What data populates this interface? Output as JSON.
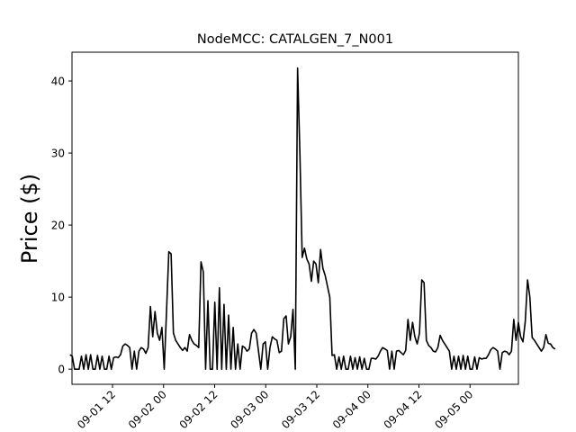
{
  "chart_data": {
    "type": "line",
    "title": "NodeMCC: CATALGEN_7_N001",
    "xlabel": "",
    "ylabel": "Price ($)",
    "x_range": [
      "2022-09-01 02:00",
      "2022-09-05 20:00"
    ],
    "x_tick_labels": [
      "09-01 12",
      "09-02 00",
      "09-02 12",
      "09-03 00",
      "09-03 12",
      "09-04 00",
      "09-04 12",
      "09-05 00"
    ],
    "y_tick_values": [
      0,
      10,
      20,
      30,
      40
    ],
    "ylim": [
      -2.1,
      44
    ],
    "grid": false,
    "legend": "none",
    "line_color": "#000000",
    "series": [
      {
        "values": [
          2.0,
          1.8,
          0.0,
          0.0,
          0.0,
          1.8,
          0.0,
          2.0,
          0.0,
          2.0,
          0.0,
          0.0,
          1.9,
          0.0,
          1.8,
          0.0,
          0.0,
          1.8,
          0.0,
          1.6,
          1.7,
          1.6,
          2.0,
          3.2,
          3.5,
          3.3,
          3.0,
          0.0,
          2.5,
          0.0,
          2.5,
          3.0,
          2.8,
          2.2,
          3.0,
          8.7,
          4.5,
          8.0,
          5.0,
          4.0,
          5.8,
          0.0,
          8.0,
          16.3,
          16.0,
          5.0,
          4.0,
          3.5,
          3.0,
          2.6,
          3.0,
          2.5,
          4.8,
          4.0,
          3.5,
          3.3,
          3.0,
          14.9,
          13.5,
          0.0,
          9.5,
          0.0,
          0.0,
          9.3,
          0.0,
          11.3,
          0.0,
          9.0,
          0.0,
          7.5,
          0.0,
          5.8,
          0.0,
          3.5,
          0.0,
          3.2,
          3.0,
          2.5,
          2.8,
          5.0,
          5.5,
          5.0,
          2.5,
          0.0,
          3.5,
          3.8,
          0.0,
          3.0,
          4.5,
          4.2,
          4.0,
          2.3,
          2.5,
          7.0,
          7.4,
          3.5,
          4.5,
          8.3,
          0.0,
          41.8,
          30.0,
          15.5,
          16.8,
          15.3,
          14.6,
          12.2,
          15.0,
          14.6,
          12.0,
          16.6,
          14.0,
          13.0,
          11.5,
          10.0,
          1.9,
          2.0,
          0.0,
          1.7,
          0.0,
          1.8,
          0.0,
          0.0,
          1.8,
          0.0,
          1.6,
          0.0,
          1.7,
          0.0,
          1.5,
          0.0,
          0.0,
          1.5,
          1.5,
          1.4,
          1.8,
          2.5,
          3.0,
          2.8,
          2.6,
          0.0,
          2.5,
          0.0,
          2.5,
          2.6,
          2.3,
          2.0,
          2.6,
          6.9,
          4.0,
          6.5,
          4.5,
          3.5,
          5.0,
          12.4,
          12.0,
          4.0,
          3.3,
          3.0,
          2.5,
          2.4,
          3.0,
          4.7,
          4.0,
          3.5,
          3.0,
          2.5,
          0.0,
          1.8,
          0.0,
          1.8,
          0.0,
          1.9,
          0.0,
          1.8,
          0.0,
          0.0,
          1.7,
          0.0,
          1.6,
          1.4,
          1.5,
          1.5,
          2.0,
          2.7,
          3.0,
          2.8,
          2.5,
          0.0,
          2.3,
          2.5,
          2.4,
          2.0,
          2.5,
          6.9,
          4.0,
          6.5,
          4.5,
          3.8,
          6.6,
          12.4,
          10.0,
          4.4,
          4.0,
          3.5,
          3.0,
          2.5,
          3.0,
          4.8,
          3.6,
          3.5,
          3.0,
          2.8
        ]
      }
    ]
  }
}
